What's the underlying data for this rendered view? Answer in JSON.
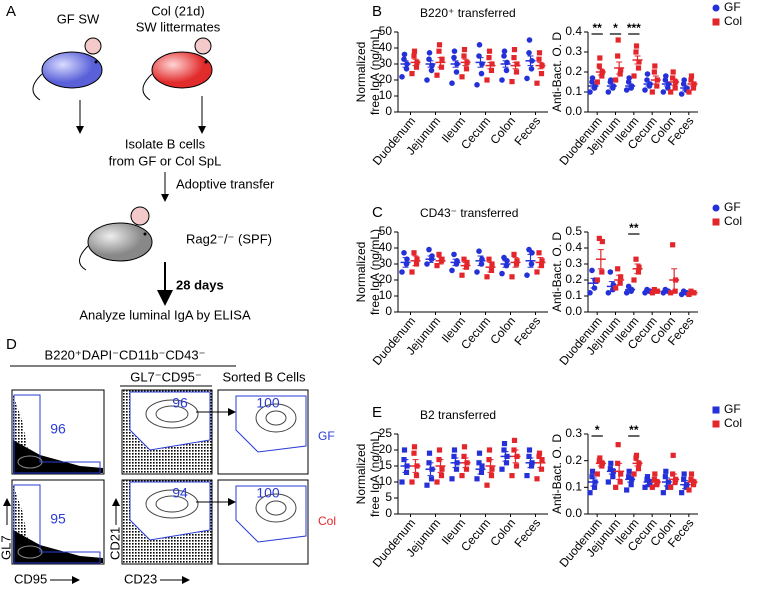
{
  "figure": {
    "panels": [
      "A",
      "B",
      "C",
      "D",
      "E"
    ],
    "diagram": {
      "donor1": "GF SW",
      "donor2": [
        "Col (21d)",
        "SW littermates"
      ],
      "step1": [
        "Isolate B cells",
        "from GF or Col SpL"
      ],
      "step2": "Adoptive transfer",
      "recipient": "Rag2⁻/⁻ (SPF)",
      "duration": "28 days",
      "readout": "Analyze luminal IgA by ELISA"
    },
    "flow": {
      "gate1": "B220⁺DAPI⁻CD11b⁻CD43⁻",
      "gate2": "GL7⁻CD95⁻",
      "gate3": "Sorted B Cells",
      "gf_values": [
        96,
        96,
        100
      ],
      "col_values": [
        95,
        94,
        100
      ],
      "rows": [
        "GF",
        "Col"
      ],
      "axes": [
        "GL7",
        "CD95",
        "CD21",
        "CD23"
      ]
    }
  },
  "chart_data": [
    {
      "type": "dot",
      "title": "B220⁺ transferred",
      "ylabel": [
        "Normalized",
        "free IgA (ng/mL)"
      ],
      "legend": false,
      "categories": [
        "Duodenum",
        "Jejunum",
        "Ileum",
        "Cecum",
        "Colon",
        "Feces"
      ],
      "ylim": [
        0,
        50
      ],
      "yticks": [
        0,
        10,
        20,
        30,
        40,
        50
      ],
      "series": [
        {
          "name": "GF",
          "color": "#2430d8",
          "marker": "circle",
          "values": [
            [
              22,
              27,
              30,
              33,
              36
            ],
            [
              20,
              26,
              29,
              33,
              37
            ],
            [
              18,
              25,
              30,
              34,
              38
            ],
            [
              17,
              24,
              30,
              35,
              42
            ],
            [
              20,
              26,
              31,
              35,
              38
            ],
            [
              21,
              27,
              32,
              37,
              45
            ]
          ],
          "means": [
            30,
            30,
            30,
            31,
            30,
            32
          ],
          "errors": [
            2,
            2,
            2,
            3,
            2,
            3
          ]
        },
        {
          "name": "Col",
          "color": "#e3262b",
          "marker": "square",
          "values": [
            [
              24,
              28,
              31,
              35,
              38
            ],
            [
              23,
              28,
              33,
              38,
              42
            ],
            [
              22,
              27,
              31,
              35,
              39
            ],
            [
              20,
              26,
              30,
              34,
              38
            ],
            [
              19,
              25,
              30,
              34,
              39
            ],
            [
              18,
              24,
              29,
              33,
              37
            ]
          ],
          "means": [
            31,
            31,
            31,
            29,
            29,
            29
          ],
          "errors": [
            2,
            3,
            2,
            2,
            2,
            2
          ]
        }
      ]
    },
    {
      "type": "dot",
      "ylabel": [
        "Anti-Bact. O. D"
      ],
      "legend": true,
      "categories": [
        "Duodenum",
        "Jejunum",
        "Ileum",
        "Cecum",
        "Colon",
        "Feces"
      ],
      "ylim": [
        0,
        0.4
      ],
      "yticks": [
        {
          "value": 0,
          "label": "0.0"
        },
        0.1,
        0.2,
        0.3,
        0.4
      ],
      "significance": [
        {
          "category": "Duodenum",
          "label": "**"
        },
        {
          "category": "Jejunum",
          "label": "*"
        },
        {
          "category": "Ileum",
          "label": "***"
        }
      ],
      "series": [
        {
          "name": "GF",
          "color": "#2430d8",
          "marker": "circle",
          "values": [
            [
              0.1,
              0.12,
              0.13,
              0.15,
              0.17
            ],
            [
              0.1,
              0.12,
              0.13,
              0.15,
              0.16
            ],
            [
              0.11,
              0.12,
              0.13,
              0.15,
              0.17
            ],
            [
              0.11,
              0.13,
              0.14,
              0.16,
              0.19
            ],
            [
              0.1,
              0.12,
              0.14,
              0.16,
              0.18
            ],
            [
              0.09,
              0.11,
              0.12,
              0.14,
              0.16
            ]
          ],
          "means": [
            0.13,
            0.13,
            0.13,
            0.14,
            0.14,
            0.12
          ],
          "errors": [
            0.01,
            0.01,
            0.01,
            0.01,
            0.01,
            0.01
          ]
        },
        {
          "name": "Col",
          "color": "#e3262b",
          "marker": "square",
          "values": [
            [
              0.15,
              0.18,
              0.2,
              0.23,
              0.27
            ],
            [
              0.16,
              0.19,
              0.21,
              0.28,
              0.36
            ],
            [
              0.18,
              0.22,
              0.25,
              0.3,
              0.33
            ],
            [
              0.1,
              0.13,
              0.16,
              0.2,
              0.23
            ],
            [
              0.1,
              0.12,
              0.15,
              0.17,
              0.2
            ],
            [
              0.1,
              0.12,
              0.14,
              0.16,
              0.18
            ]
          ],
          "means": [
            0.2,
            0.22,
            0.26,
            0.16,
            0.15,
            0.14
          ],
          "errors": [
            0.015,
            0.03,
            0.02,
            0.02,
            0.015,
            0.01
          ]
        }
      ]
    },
    {
      "type": "dot",
      "title": "CD43⁻ transferred",
      "ylabel": [
        "Normalized",
        "free IgA (ng/mL)"
      ],
      "legend": false,
      "categories": [
        "Duodenum",
        "Jejunum",
        "Ileum",
        "Cecum",
        "Colon",
        "Feces"
      ],
      "ylim": [
        0,
        50
      ],
      "yticks": [
        0,
        10,
        20,
        30,
        40,
        50
      ],
      "series": [
        {
          "name": "GF",
          "color": "#2430d8",
          "marker": "circle",
          "values": [
            [
              25,
              30,
              33,
              37
            ],
            [
              30,
              33,
              35,
              39
            ],
            [
              26,
              30,
              32,
              36
            ],
            [
              25,
              30,
              33,
              38
            ],
            [
              24,
              29,
              32,
              34
            ],
            [
              23,
              30,
              37,
              39
            ]
          ],
          "means": [
            31,
            33,
            31,
            32,
            30,
            32
          ],
          "errors": [
            3,
            2,
            2,
            3,
            2,
            4
          ]
        },
        {
          "name": "Col",
          "color": "#e3262b",
          "marker": "square",
          "values": [
            [
              25,
              30,
              33,
              37
            ],
            [
              29,
              32,
              33,
              36
            ],
            [
              23,
              28,
              31,
              33
            ],
            [
              22,
              26,
              30,
              33
            ],
            [
              22,
              30,
              32,
              36
            ],
            [
              25,
              29,
              32,
              37
            ]
          ],
          "means": [
            32,
            32,
            29,
            28,
            31,
            31
          ],
          "errors": [
            3,
            2,
            2,
            3,
            3,
            3
          ]
        }
      ]
    },
    {
      "type": "dot",
      "ylabel": [
        "Anti-Bact. O. D"
      ],
      "legend": true,
      "categories": [
        "Duodenum",
        "Jejunum",
        "Ileum",
        "Cecum",
        "Colon",
        "Feces"
      ],
      "ylim": [
        0,
        0.5
      ],
      "yticks": [
        {
          "value": 0,
          "label": "0.0"
        },
        0.1,
        0.2,
        0.3,
        0.4,
        0.5
      ],
      "significance": [
        {
          "category": "Ileum",
          "label": "**"
        }
      ],
      "series": [
        {
          "name": "GF",
          "color": "#2430d8",
          "marker": "circle",
          "values": [
            [
              0.12,
              0.15,
              0.2,
              0.26
            ],
            [
              0.12,
              0.14,
              0.17,
              0.25
            ],
            [
              0.12,
              0.13,
              0.14,
              0.16
            ],
            [
              0.12,
              0.13,
              0.13,
              0.14
            ],
            [
              0.12,
              0.13,
              0.13,
              0.14
            ],
            [
              0.11,
              0.12,
              0.12,
              0.13
            ]
          ],
          "means": [
            0.18,
            0.16,
            0.14,
            0.13,
            0.13,
            0.12
          ],
          "errors": [
            0.03,
            0.03,
            0.01,
            0.005,
            0.005,
            0.005
          ]
        },
        {
          "name": "Col",
          "color": "#e3262b",
          "marker": "square",
          "values": [
            [
              0.2,
              0.25,
              0.44,
              0.46
            ],
            [
              0.15,
              0.18,
              0.22,
              0.27
            ],
            [
              0.2,
              0.25,
              0.28,
              0.33
            ],
            [
              0.12,
              0.13,
              0.13,
              0.14
            ],
            [
              0.12,
              0.13,
              0.2,
              0.42
            ],
            [
              0.11,
              0.12,
              0.12,
              0.13
            ]
          ],
          "means": [
            0.33,
            0.2,
            0.27,
            0.13,
            0.2,
            0.12
          ],
          "errors": [
            0.06,
            0.03,
            0.03,
            0.005,
            0.07,
            0.005
          ]
        }
      ]
    },
    {
      "type": "dot",
      "title": "B2 transferred",
      "ylabel": [
        "Normalized",
        "free IgA (ng/mL)"
      ],
      "legend": false,
      "categories": [
        "Duodenum",
        "Jejunum",
        "Ileum",
        "Cecum",
        "Colon",
        "Feces"
      ],
      "ylim": [
        0,
        25
      ],
      "yticks": [
        0,
        5,
        10,
        15,
        20,
        25
      ],
      "series": [
        {
          "name": "GF",
          "color": "#2430d8",
          "marker": "square",
          "values": [
            [
              10,
              13,
              15,
              17,
              20
            ],
            [
              9,
              11,
              14,
              16,
              19
            ],
            [
              11,
              14,
              16,
              18,
              20
            ],
            [
              11,
              13,
              15,
              16,
              19
            ],
            [
              14,
              16,
              18,
              20,
              22
            ],
            [
              12,
              15,
              16,
              18,
              20
            ]
          ],
          "means": [
            15,
            14,
            16,
            14,
            18,
            16
          ],
          "errors": [
            2,
            2,
            1.5,
            1.5,
            1.5,
            1.5
          ]
        },
        {
          "name": "Col",
          "color": "#e3262b",
          "marker": "square",
          "values": [
            [
              10,
              12,
              15,
              19,
              21
            ],
            [
              10,
              12,
              14,
              17,
              20
            ],
            [
              12,
              14,
              16,
              18,
              21
            ],
            [
              9,
              12,
              14,
              17,
              20
            ],
            [
              12,
              15,
              18,
              20,
              23
            ],
            [
              11,
              14,
              17,
              18,
              19
            ]
          ],
          "means": [
            15,
            15,
            16,
            15,
            18,
            16
          ],
          "errors": [
            2,
            2,
            1.5,
            2,
            2,
            1.5
          ]
        }
      ]
    },
    {
      "type": "dot",
      "ylabel": [
        "Anti-Bact. O. D"
      ],
      "legend": true,
      "categories": [
        "Duodenum",
        "Jejunum",
        "Ileum",
        "Cecum",
        "Colon",
        "Feces"
      ],
      "ylim": [
        0,
        0.3
      ],
      "yticks": [
        {
          "value": 0,
          "label": "0.0"
        },
        0.1,
        0.2,
        0.3
      ],
      "significance": [
        {
          "category": "Duodenum",
          "label": "*"
        },
        {
          "category": "Ileum",
          "label": "**"
        }
      ],
      "series": [
        {
          "name": "GF",
          "color": "#2430d8",
          "marker": "square",
          "values": [
            [
              0.08,
              0.1,
              0.12,
              0.14,
              0.16
            ],
            [
              0.12,
              0.14,
              0.16,
              0.17,
              0.19
            ],
            [
              0.09,
              0.11,
              0.13,
              0.14,
              0.16
            ],
            [
              0.1,
              0.11,
              0.12,
              0.13,
              0.14
            ],
            [
              0.08,
              0.1,
              0.12,
              0.14,
              0.16
            ],
            [
              0.08,
              0.1,
              0.11,
              0.13,
              0.15
            ]
          ],
          "means": [
            0.12,
            0.16,
            0.13,
            0.12,
            0.12,
            0.11
          ],
          "errors": [
            0.015,
            0.01,
            0.01,
            0.01,
            0.015,
            0.015
          ]
        },
        {
          "name": "Col",
          "color": "#e3262b",
          "marker": "square",
          "values": [
            [
              0.15,
              0.18,
              0.19,
              0.2,
              0.21
            ],
            [
              0.1,
              0.12,
              0.15,
              0.19,
              0.26
            ],
            [
              0.15,
              0.17,
              0.19,
              0.21,
              0.22
            ],
            [
              0.1,
              0.11,
              0.12,
              0.13,
              0.15
            ],
            [
              0.1,
              0.12,
              0.13,
              0.15,
              0.22
            ],
            [
              0.09,
              0.11,
              0.12,
              0.13,
              0.15
            ]
          ],
          "means": [
            0.19,
            0.16,
            0.19,
            0.12,
            0.13,
            0.12
          ],
          "errors": [
            0.01,
            0.03,
            0.01,
            0.01,
            0.02,
            0.01
          ]
        }
      ]
    }
  ]
}
